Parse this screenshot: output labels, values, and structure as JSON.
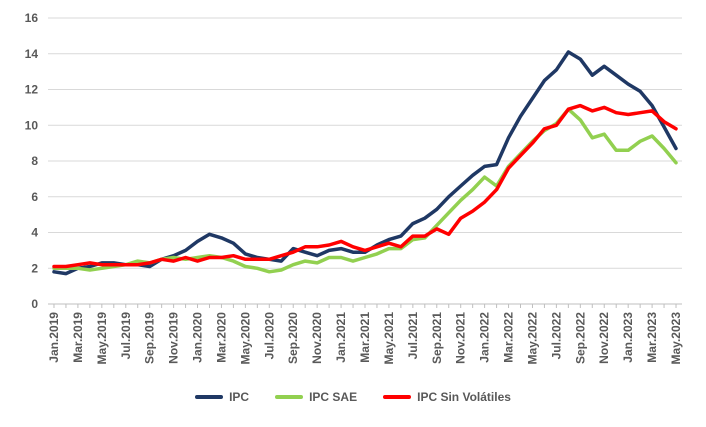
{
  "chart_data": {
    "type": "line",
    "title": "",
    "xlabel": "",
    "ylabel": "",
    "ylim": [
      0,
      16
    ],
    "yticks": [
      0,
      2,
      4,
      6,
      8,
      10,
      12,
      14,
      16
    ],
    "grid": true,
    "legend_position": "bottom",
    "categories": [
      "Jan.2019",
      "Feb.2019",
      "Mar.2019",
      "Apr.2019",
      "May.2019",
      "Jun.2019",
      "Jul.2019",
      "Aug.2019",
      "Sep.2019",
      "Oct.2019",
      "Nov.2019",
      "Dec.2019",
      "Jan.2020",
      "Feb.2020",
      "Mar.2020",
      "Apr.2020",
      "May.2020",
      "Jun.2020",
      "Jul.2020",
      "Aug.2020",
      "Sep.2020",
      "Oct.2020",
      "Nov.2020",
      "Dec.2020",
      "Jan.2021",
      "Feb.2021",
      "Mar.2021",
      "Apr.2021",
      "May.2021",
      "Jun.2021",
      "Jul.2021",
      "Aug.2021",
      "Sep.2021",
      "Oct.2021",
      "Nov.2021",
      "Dec.2021",
      "Jan.2022",
      "Feb.2022",
      "Mar.2022",
      "Apr.2022",
      "May.2022",
      "Jun.2022",
      "Jul.2022",
      "Aug.2022",
      "Sep.2022",
      "Oct.2022",
      "Nov.2022",
      "Dec.2022",
      "Jan.2023",
      "Feb.2023",
      "Mar.2023",
      "Apr.2023",
      "May.2023"
    ],
    "xtick_labels": [
      "Jan.2019",
      "Mar.2019",
      "May.2019",
      "Jul.2019",
      "Sep.2019",
      "Nov.2019",
      "Jan.2020",
      "Mar.2020",
      "May.2020",
      "Jul.2020",
      "Sep.2020",
      "Nov.2020",
      "Jan.2021",
      "Mar.2021",
      "May.2021",
      "Jul.2021",
      "Sep.2021",
      "Nov.2021",
      "Jan.2022",
      "Mar.2022",
      "May.2022",
      "Jul.2022",
      "Sep.2022",
      "Nov.2022",
      "Jan.2023",
      "Mar.2023",
      "May.2023"
    ],
    "series": [
      {
        "name": "IPC",
        "color": "#1f3864",
        "values": [
          1.8,
          1.7,
          2.0,
          2.1,
          2.3,
          2.3,
          2.2,
          2.2,
          2.1,
          2.5,
          2.7,
          3.0,
          3.5,
          3.9,
          3.7,
          3.4,
          2.8,
          2.6,
          2.5,
          2.4,
          3.1,
          2.9,
          2.7,
          3.0,
          3.1,
          2.9,
          2.9,
          3.3,
          3.6,
          3.8,
          4.5,
          4.8,
          5.3,
          6.0,
          6.6,
          7.2,
          7.7,
          7.8,
          9.3,
          10.5,
          11.5,
          12.5,
          13.1,
          14.1,
          13.7,
          12.8,
          13.3,
          12.8,
          12.3,
          11.9,
          11.1,
          9.9,
          8.7
        ]
      },
      {
        "name": "IPC SAE",
        "color": "#92d050",
        "values": [
          2.0,
          2.0,
          2.0,
          1.9,
          2.0,
          2.1,
          2.2,
          2.4,
          2.3,
          2.5,
          2.6,
          2.5,
          2.6,
          2.7,
          2.6,
          2.4,
          2.1,
          2.0,
          1.8,
          1.9,
          2.2,
          2.4,
          2.3,
          2.6,
          2.6,
          2.4,
          2.6,
          2.8,
          3.1,
          3.1,
          3.6,
          3.7,
          4.4,
          5.1,
          5.8,
          6.4,
          7.1,
          6.6,
          7.7,
          8.4,
          9.1,
          9.7,
          10.1,
          10.9,
          10.3,
          9.3,
          9.5,
          8.6,
          8.6,
          9.1,
          9.4,
          8.7,
          7.9
        ]
      },
      {
        "name": "IPC Sin Volátiles",
        "color": "#ff0000",
        "values": [
          2.1,
          2.1,
          2.2,
          2.3,
          2.2,
          2.2,
          2.2,
          2.2,
          2.3,
          2.5,
          2.4,
          2.6,
          2.4,
          2.6,
          2.6,
          2.7,
          2.5,
          2.5,
          2.5,
          2.7,
          2.9,
          3.2,
          3.2,
          3.3,
          3.5,
          3.2,
          3.0,
          3.2,
          3.4,
          3.2,
          3.8,
          3.8,
          4.2,
          3.9,
          4.8,
          5.2,
          5.7,
          6.4,
          7.6,
          8.3,
          9.0,
          9.8,
          10.0,
          10.9,
          11.1,
          10.8,
          11.0,
          10.7,
          10.6,
          10.7,
          10.8,
          10.2,
          9.8
        ]
      }
    ]
  }
}
